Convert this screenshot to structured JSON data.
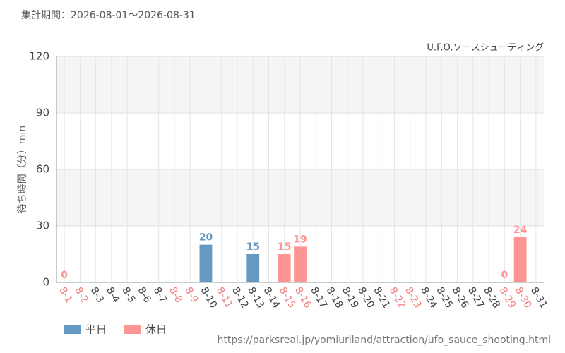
{
  "chart_data": {
    "type": "bar",
    "title": "集計期間：2026-08-01〜2026-08-31",
    "subtitle": "U.F.O.ソースシューティング",
    "y_label": "待ち時間（分）min",
    "source": "https://parksreal.jp/yomiuriland/attraction/ufo_sauce_shooting.html",
    "categories": [
      "8-1",
      "8-2",
      "8-3",
      "8-4",
      "8-5",
      "8-6",
      "8-7",
      "8-8",
      "8-9",
      "8-10",
      "8-11",
      "8-12",
      "8-13",
      "8-14",
      "8-15",
      "8-16",
      "8-17",
      "8-18",
      "8-19",
      "8-20",
      "8-21",
      "8-22",
      "8-23",
      "8-24",
      "8-25",
      "8-26",
      "8-27",
      "8-28",
      "8-29",
      "8-30",
      "8-31"
    ],
    "category_colors": [
      "#f08080",
      "#f08080",
      "#444444",
      "#444444",
      "#444444",
      "#444444",
      "#444444",
      "#f08080",
      "#f08080",
      "#444444",
      "#f08080",
      "#444444",
      "#444444",
      "#444444",
      "#f08080",
      "#f08080",
      "#444444",
      "#444444",
      "#444444",
      "#444444",
      "#444444",
      "#f08080",
      "#f08080",
      "#444444",
      "#444444",
      "#444444",
      "#444444",
      "#444444",
      "#f08080",
      "#f08080",
      "#444444"
    ],
    "series": [
      {
        "name": "平日",
        "color": "#6699c2",
        "values": [
          null,
          null,
          null,
          null,
          null,
          null,
          null,
          null,
          null,
          20,
          null,
          null,
          15,
          null,
          null,
          null,
          null,
          null,
          null,
          null,
          null,
          null,
          null,
          null,
          null,
          null,
          null,
          null,
          null,
          null,
          null
        ]
      },
      {
        "name": "休日",
        "color": "#ff9494",
        "values": [
          0,
          null,
          null,
          null,
          null,
          null,
          null,
          null,
          null,
          null,
          null,
          null,
          null,
          null,
          15,
          19,
          null,
          null,
          null,
          null,
          null,
          null,
          null,
          null,
          null,
          null,
          null,
          null,
          0,
          24,
          null
        ]
      }
    ],
    "ylim": [
      0,
      120
    ],
    "yticks": [
      0,
      30,
      60,
      90,
      120
    ],
    "grid": true
  }
}
